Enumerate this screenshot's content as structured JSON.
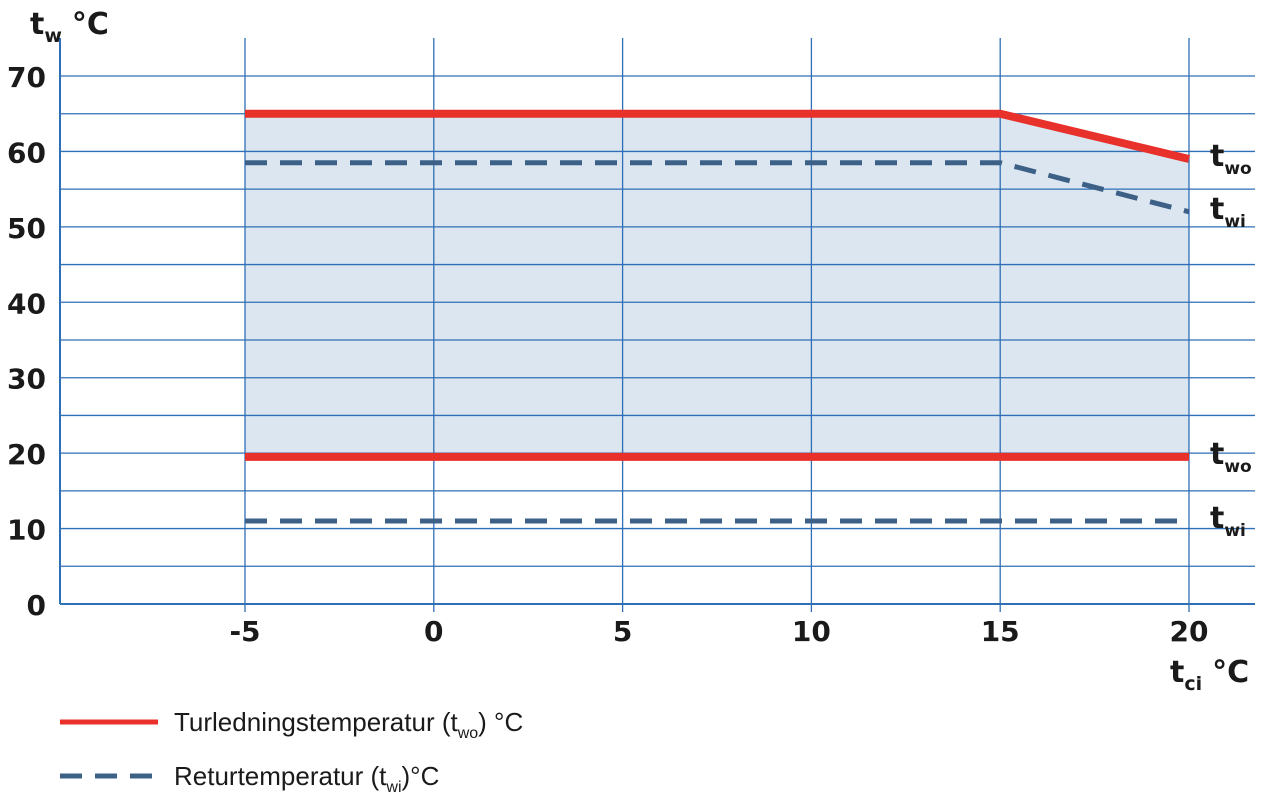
{
  "colors": {
    "grid": "#2f6fb6",
    "fill": "#dbe6f1",
    "outlet": "#e8312a",
    "return": "#3d6087",
    "axis": "#2f6fb6"
  },
  "chart_data": {
    "type": "line",
    "xlim": [
      -10,
      22
    ],
    "ylim": [
      0,
      70
    ],
    "x_ticks": [
      -5,
      0,
      5,
      10,
      15,
      20
    ],
    "x_tick_labels": [
      "-5",
      "0",
      "5",
      "10",
      "15",
      "20"
    ],
    "y_ticks": [
      0,
      10,
      20,
      30,
      40,
      50,
      60,
      70
    ],
    "y_tick_labels": [
      "0",
      "10",
      "20",
      "30",
      "40",
      "50",
      "60",
      "70"
    ],
    "y_minor_step": 5,
    "grid": true,
    "ylabel_main": "t",
    "ylabel_sub": "w",
    "ylabel_unit": "°C",
    "xlabel_main": "t",
    "xlabel_sub": "ci",
    "xlabel_unit": "°C",
    "shaded_region": {
      "upper": [
        [
          -5,
          65
        ],
        [
          15,
          65
        ],
        [
          20,
          59
        ]
      ],
      "lower": [
        [
          -5,
          19.5
        ],
        [
          20,
          19.5
        ]
      ]
    },
    "series": [
      {
        "name": "outlet_max",
        "style": "solid",
        "x": [
          -5,
          15,
          20
        ],
        "y": [
          65,
          65,
          59
        ],
        "end_label_main": "t",
        "end_label_sub": "wo"
      },
      {
        "name": "return_max",
        "style": "dashed",
        "x": [
          -5,
          15,
          20
        ],
        "y": [
          58.5,
          58.5,
          52
        ],
        "end_label_main": "t",
        "end_label_sub": "wi"
      },
      {
        "name": "outlet_min",
        "style": "solid",
        "x": [
          -5,
          20
        ],
        "y": [
          19.5,
          19.5
        ],
        "end_label_main": "t",
        "end_label_sub": "wo"
      },
      {
        "name": "return_min",
        "style": "dashed",
        "x": [
          -5,
          20
        ],
        "y": [
          11,
          11
        ],
        "end_label_main": "t",
        "end_label_sub": "wi"
      }
    ],
    "legend": [
      {
        "style": "solid",
        "text_before": "Turledningstemperatur (t",
        "sub": "wo",
        "text_after": ") °C"
      },
      {
        "style": "dashed",
        "text_before": "Returtemperatur (t",
        "sub": "wi",
        "text_after": ")°C"
      }
    ],
    "legend_position": "bottom-left"
  }
}
